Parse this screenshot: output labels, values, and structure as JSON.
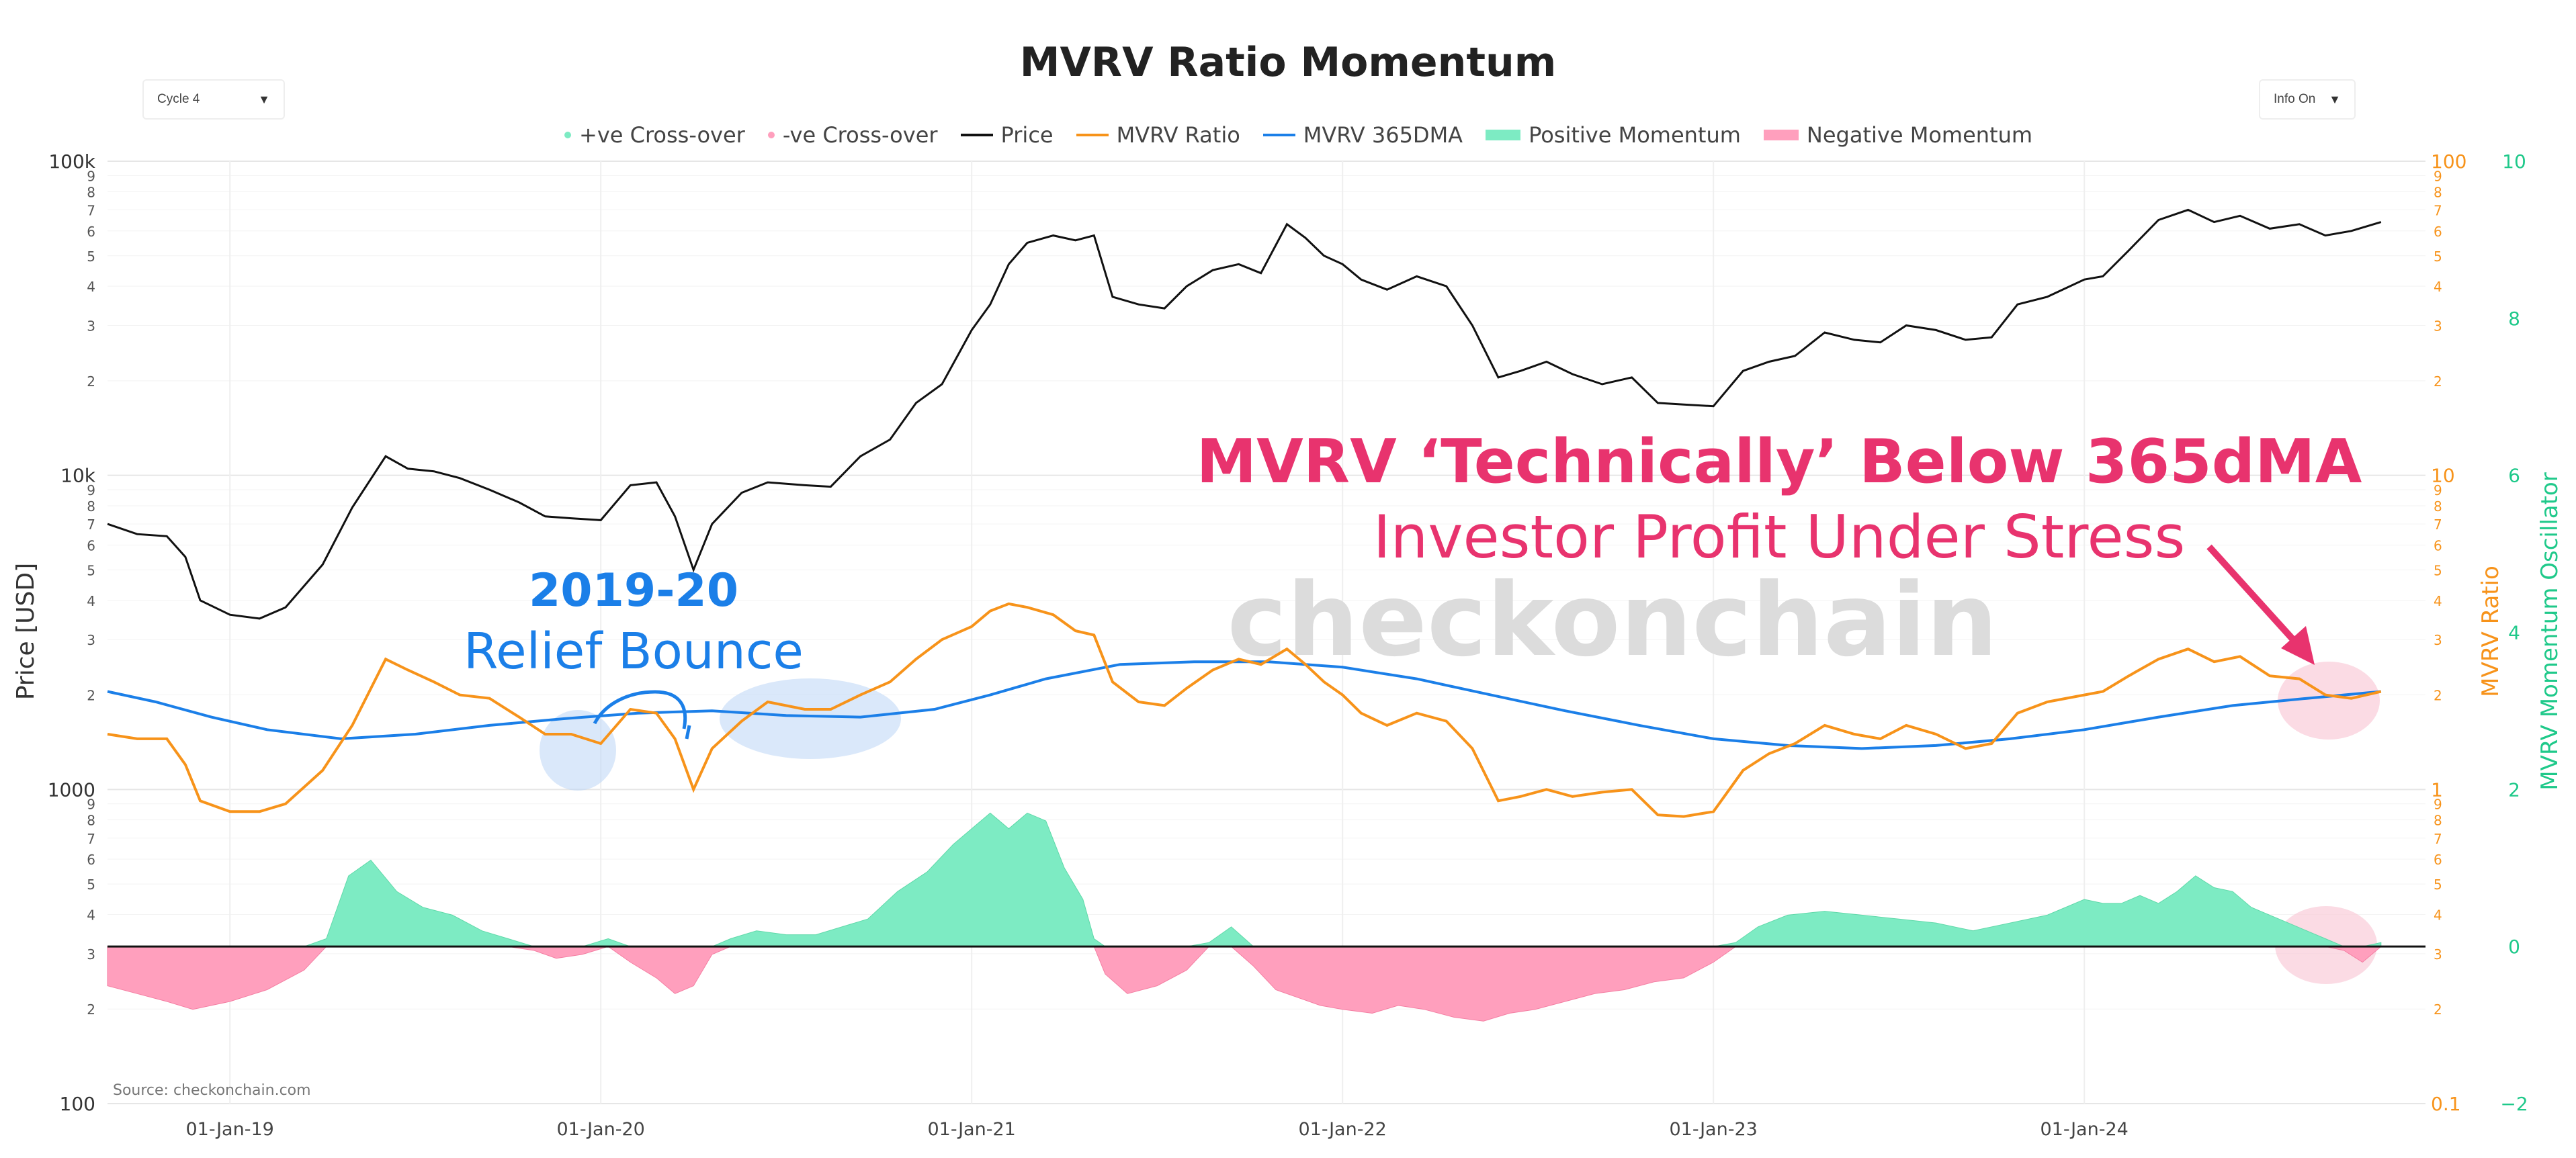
{
  "chart_data": {
    "type": "line",
    "title": "MVRV Ratio Momentum",
    "controls": {
      "cycle_select": "Cycle 4",
      "info_select": "Info On"
    },
    "legend": [
      "+ve Cross-over",
      "-ve Cross-over",
      "Price",
      "MVRV Ratio",
      "MVRV 365DMA",
      "Positive Momentum",
      "Negative Momentum"
    ],
    "colors": {
      "price": "#111111",
      "mvrv": "#f7931a",
      "dma": "#1b7fe8",
      "positive": "#7debc3",
      "negative": "#ff9fbd",
      "annotation_pink": "#e8336e",
      "annotation_blue": "#1b7fe8",
      "watermark": "#d8d8d8"
    },
    "x_ticks": [
      "01-Jan-19",
      "01-Jan-20",
      "01-Jan-21",
      "01-Jan-22",
      "01-Jan-23",
      "01-Jan-24"
    ],
    "x_range": [
      2018.67,
      2024.92
    ],
    "left_axis": {
      "label": "Price [USD]",
      "scale": "log",
      "range": [
        100,
        100000
      ],
      "major_ticks": [
        {
          "value": 100,
          "label": "100"
        },
        {
          "value": 1000,
          "label": "1000"
        },
        {
          "value": 10000,
          "label": "10k"
        },
        {
          "value": 100000,
          "label": "100k"
        }
      ],
      "minor_labels": [
        "2",
        "3",
        "4",
        "5",
        "6",
        "7",
        "8",
        "9"
      ]
    },
    "right_axis_mvrv": {
      "label": "MVRV Ratio",
      "scale": "log",
      "range": [
        0.1,
        100
      ],
      "major_ticks": [
        {
          "value": 0.1,
          "label": "0.1"
        },
        {
          "value": 1,
          "label": "1"
        },
        {
          "value": 10,
          "label": "10"
        },
        {
          "value": 100,
          "label": "100"
        }
      ],
      "minor_labels": [
        "2",
        "3",
        "4",
        "5",
        "6",
        "7",
        "8",
        "9"
      ]
    },
    "right_axis_osc": {
      "label": "MVRV Momentum Oscillator",
      "range": [
        -2,
        10
      ],
      "ticks": [
        -2,
        0,
        2,
        4,
        6,
        8,
        10
      ]
    },
    "series": [
      {
        "name": "Price",
        "x": [
          2018.67,
          2018.75,
          2018.83,
          2018.88,
          2018.92,
          2019.0,
          2019.08,
          2019.15,
          2019.25,
          2019.33,
          2019.42,
          2019.48,
          2019.55,
          2019.62,
          2019.7,
          2019.78,
          2019.85,
          2019.92,
          2020.0,
          2020.08,
          2020.15,
          2020.2,
          2020.25,
          2020.3,
          2020.38,
          2020.45,
          2020.55,
          2020.62,
          2020.7,
          2020.78,
          2020.85,
          2020.92,
          2021.0,
          2021.05,
          2021.1,
          2021.15,
          2021.22,
          2021.28,
          2021.33,
          2021.38,
          2021.45,
          2021.52,
          2021.58,
          2021.65,
          2021.72,
          2021.78,
          2021.85,
          2021.9,
          2021.95,
          2022.0,
          2022.05,
          2022.12,
          2022.2,
          2022.28,
          2022.35,
          2022.42,
          2022.48,
          2022.55,
          2022.62,
          2022.7,
          2022.78,
          2022.85,
          2022.92,
          2023.0,
          2023.08,
          2023.15,
          2023.22,
          2023.3,
          2023.38,
          2023.45,
          2023.52,
          2023.6,
          2023.68,
          2023.75,
          2023.82,
          2023.9,
          2024.0,
          2024.05,
          2024.12,
          2024.2,
          2024.28,
          2024.35,
          2024.42,
          2024.5,
          2024.58,
          2024.65,
          2024.72,
          2024.8
        ],
        "y": [
          7000,
          6500,
          6400,
          5500,
          4000,
          3600,
          3500,
          3800,
          5200,
          7900,
          11500,
          10500,
          10300,
          9800,
          9000,
          8200,
          7400,
          7300,
          7200,
          9300,
          9500,
          7400,
          5000,
          7000,
          8800,
          9500,
          9300,
          9200,
          11500,
          13000,
          17000,
          19500,
          29000,
          35000,
          47000,
          55000,
          58000,
          56000,
          58000,
          37000,
          35000,
          34000,
          40000,
          45000,
          47000,
          44000,
          63000,
          57000,
          50000,
          47000,
          42000,
          39000,
          43000,
          40000,
          30000,
          20500,
          21500,
          23000,
          21000,
          19500,
          20500,
          17000,
          16800,
          16600,
          21500,
          23000,
          24000,
          28500,
          27000,
          26500,
          30000,
          29000,
          27000,
          27500,
          35000,
          37000,
          42000,
          43000,
          52000,
          65000,
          70000,
          64000,
          67000,
          61000,
          63000,
          58000,
          60000,
          64000
        ]
      },
      {
        "name": "MVRV Ratio",
        "x": [
          2018.67,
          2018.75,
          2018.83,
          2018.88,
          2018.92,
          2019.0,
          2019.08,
          2019.15,
          2019.25,
          2019.33,
          2019.42,
          2019.48,
          2019.55,
          2019.62,
          2019.7,
          2019.78,
          2019.85,
          2019.92,
          2020.0,
          2020.08,
          2020.15,
          2020.2,
          2020.25,
          2020.3,
          2020.38,
          2020.45,
          2020.55,
          2020.62,
          2020.7,
          2020.78,
          2020.85,
          2020.92,
          2021.0,
          2021.05,
          2021.1,
          2021.15,
          2021.22,
          2021.28,
          2021.33,
          2021.38,
          2021.45,
          2021.52,
          2021.58,
          2021.65,
          2021.72,
          2021.78,
          2021.85,
          2021.9,
          2021.95,
          2022.0,
          2022.05,
          2022.12,
          2022.2,
          2022.28,
          2022.35,
          2022.42,
          2022.48,
          2022.55,
          2022.62,
          2022.7,
          2022.78,
          2022.85,
          2022.92,
          2023.0,
          2023.08,
          2023.15,
          2023.22,
          2023.3,
          2023.38,
          2023.45,
          2023.52,
          2023.6,
          2023.68,
          2023.75,
          2023.82,
          2023.9,
          2024.0,
          2024.05,
          2024.12,
          2024.2,
          2024.28,
          2024.35,
          2024.42,
          2024.5,
          2024.58,
          2024.65,
          2024.72,
          2024.8
        ],
        "y": [
          1.5,
          1.45,
          1.45,
          1.2,
          0.92,
          0.85,
          0.85,
          0.9,
          1.15,
          1.6,
          2.6,
          2.4,
          2.2,
          2.0,
          1.95,
          1.7,
          1.5,
          1.5,
          1.4,
          1.8,
          1.75,
          1.45,
          1.0,
          1.35,
          1.65,
          1.9,
          1.8,
          1.8,
          2.0,
          2.2,
          2.6,
          3.0,
          3.3,
          3.7,
          3.9,
          3.8,
          3.6,
          3.2,
          3.1,
          2.2,
          1.9,
          1.85,
          2.1,
          2.4,
          2.6,
          2.5,
          2.8,
          2.5,
          2.2,
          2.0,
          1.75,
          1.6,
          1.75,
          1.65,
          1.35,
          0.92,
          0.95,
          1.0,
          0.95,
          0.98,
          1.0,
          0.83,
          0.82,
          0.85,
          1.15,
          1.3,
          1.4,
          1.6,
          1.5,
          1.45,
          1.6,
          1.5,
          1.35,
          1.4,
          1.75,
          1.9,
          2.0,
          2.05,
          2.3,
          2.6,
          2.8,
          2.55,
          2.65,
          2.3,
          2.25,
          2.0,
          1.95,
          2.05
        ]
      },
      {
        "name": "MVRV 365DMA",
        "x": [
          2018.67,
          2018.8,
          2018.95,
          2019.1,
          2019.3,
          2019.5,
          2019.7,
          2019.9,
          2020.1,
          2020.3,
          2020.5,
          2020.7,
          2020.9,
          2021.05,
          2021.2,
          2021.4,
          2021.6,
          2021.8,
          2022.0,
          2022.2,
          2022.4,
          2022.6,
          2022.8,
          2023.0,
          2023.2,
          2023.4,
          2023.6,
          2023.8,
          2024.0,
          2024.2,
          2024.4,
          2024.6,
          2024.8
        ],
        "y": [
          2.05,
          1.9,
          1.7,
          1.55,
          1.45,
          1.5,
          1.6,
          1.68,
          1.75,
          1.78,
          1.72,
          1.7,
          1.8,
          2.0,
          2.25,
          2.5,
          2.55,
          2.55,
          2.45,
          2.25,
          2.0,
          1.78,
          1.6,
          1.45,
          1.38,
          1.35,
          1.38,
          1.45,
          1.55,
          1.7,
          1.85,
          1.95,
          2.05
        ]
      },
      {
        "name": "MVRV Momentum Oscillator",
        "x": [
          2018.67,
          2018.75,
          2018.83,
          2018.9,
          2019.0,
          2019.1,
          2019.2,
          2019.26,
          2019.32,
          2019.38,
          2019.45,
          2019.52,
          2019.6,
          2019.68,
          2019.75,
          2019.82,
          2019.88,
          2019.95,
          2020.02,
          2020.08,
          2020.15,
          2020.2,
          2020.25,
          2020.3,
          2020.35,
          2020.42,
          2020.5,
          2020.58,
          2020.65,
          2020.72,
          2020.8,
          2020.88,
          2020.95,
          2021.0,
          2021.05,
          2021.1,
          2021.15,
          2021.2,
          2021.25,
          2021.3,
          2021.33,
          2021.36,
          2021.42,
          2021.5,
          2021.58,
          2021.64,
          2021.7,
          2021.76,
          2021.82,
          2021.88,
          2021.94,
          2022.0,
          2022.08,
          2022.15,
          2022.22,
          2022.3,
          2022.38,
          2022.45,
          2022.52,
          2022.6,
          2022.68,
          2022.76,
          2022.84,
          2022.92,
          2023.0,
          2023.06,
          2023.12,
          2023.2,
          2023.3,
          2023.4,
          2023.5,
          2023.6,
          2023.7,
          2023.8,
          2023.9,
          2024.0,
          2024.05,
          2024.1,
          2024.15,
          2024.2,
          2024.25,
          2024.3,
          2024.35,
          2024.4,
          2024.45,
          2024.5,
          2024.55,
          2024.6,
          2024.65,
          2024.7,
          2024.75,
          2024.8
        ],
        "y": [
          -0.5,
          -0.6,
          -0.7,
          -0.8,
          -0.7,
          -0.55,
          -0.3,
          0.1,
          0.9,
          1.1,
          0.7,
          0.5,
          0.4,
          0.2,
          0.1,
          -0.05,
          -0.15,
          -0.1,
          0.1,
          -0.2,
          -0.4,
          -0.6,
          -0.5,
          -0.1,
          0.1,
          0.2,
          0.15,
          0.15,
          0.25,
          0.35,
          0.7,
          0.95,
          1.3,
          1.5,
          1.7,
          1.5,
          1.7,
          1.6,
          1.0,
          0.6,
          0.1,
          -0.35,
          -0.6,
          -0.5,
          -0.3,
          0.05,
          0.25,
          -0.25,
          -0.55,
          -0.65,
          -0.75,
          -0.8,
          -0.85,
          -0.75,
          -0.8,
          -0.9,
          -0.95,
          -0.85,
          -0.8,
          -0.7,
          -0.6,
          -0.55,
          -0.45,
          -0.4,
          -0.2,
          0.05,
          0.25,
          0.4,
          0.45,
          0.4,
          0.35,
          0.3,
          0.2,
          0.3,
          0.4,
          0.6,
          0.55,
          0.55,
          0.65,
          0.55,
          0.7,
          0.9,
          0.75,
          0.7,
          0.5,
          0.4,
          0.3,
          0.2,
          0.1,
          -0.05,
          -0.2,
          0.05
        ]
      }
    ],
    "annotations": [
      {
        "text": "2019-20",
        "color": "#1b7fe8"
      },
      {
        "text": "Relief Bounce",
        "color": "#1b7fe8"
      },
      {
        "text": "MVRV ‘Technically’ Below 365dMA",
        "color": "#e8336e"
      },
      {
        "text": "Investor Profit Under Stress",
        "color": "#e8336e"
      }
    ],
    "watermark": "checkonchain",
    "source": "Source: checkonchain.com"
  }
}
